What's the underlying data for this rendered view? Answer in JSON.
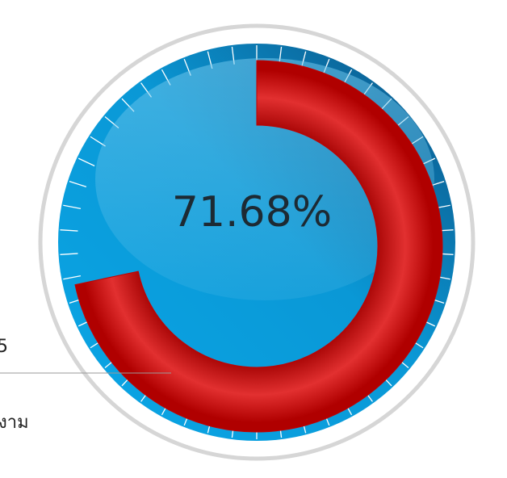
{
  "chart_data": {
    "type": "gauge",
    "values": [
      71.68
    ],
    "value_labels": [
      "71.68%"
    ],
    "color": "#c00000",
    "ylim": [
      0,
      100
    ],
    "annotations": [
      "5",
      "งาม"
    ]
  }
}
